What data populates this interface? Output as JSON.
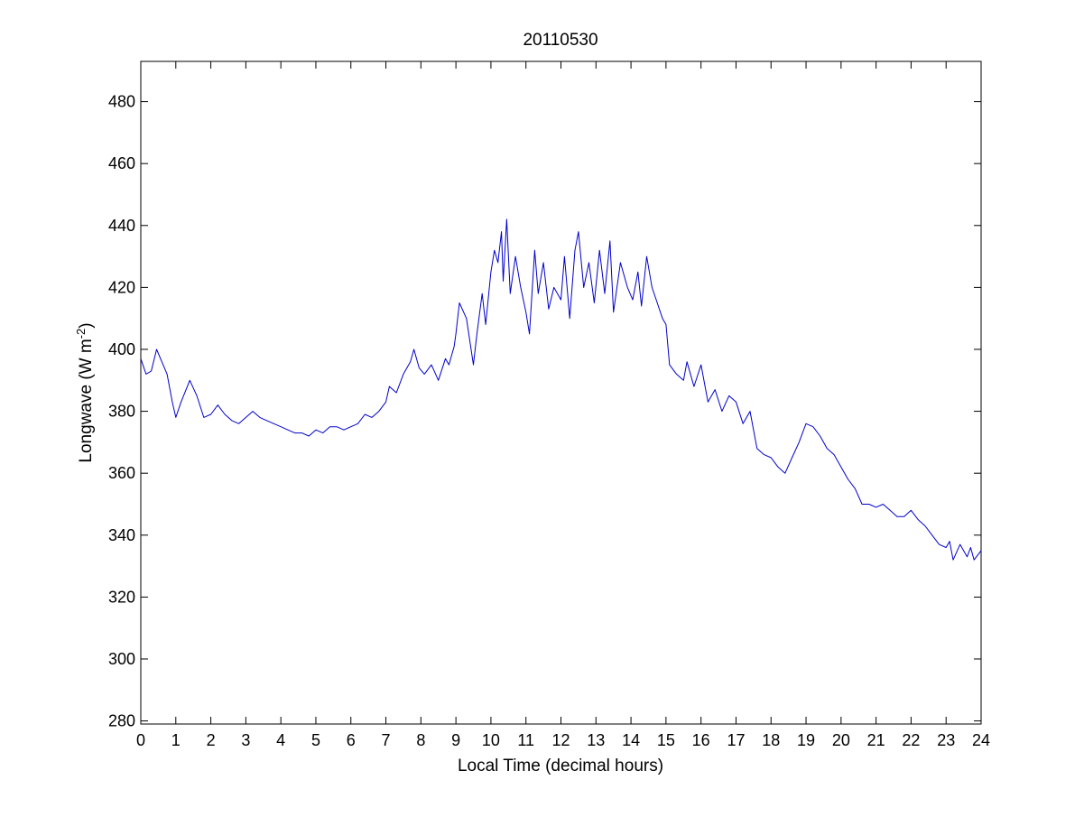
{
  "chart_data": {
    "type": "line",
    "title": "20110530",
    "xlabel": "Local Time (decimal hours)",
    "ylabel": {
      "prefix": "Longwave (W m",
      "superscript": "-2",
      "suffix": ")"
    },
    "xlim": [
      0,
      24
    ],
    "ylim": [
      279,
      493
    ],
    "xticks": [
      0,
      1,
      2,
      3,
      4,
      5,
      6,
      7,
      8,
      9,
      10,
      11,
      12,
      13,
      14,
      15,
      16,
      17,
      18,
      19,
      20,
      21,
      22,
      23,
      24
    ],
    "yticks": [
      280,
      300,
      320,
      340,
      360,
      380,
      400,
      420,
      440,
      460,
      480
    ],
    "grid": false,
    "line_color": "#0000cc",
    "series": [
      {
        "x": [
          0,
          0.15,
          0.3,
          0.45,
          0.6,
          0.75,
          0.9,
          1.0,
          1.15,
          1.4,
          1.6,
          1.8,
          2.0,
          2.2,
          2.4,
          2.6,
          2.8,
          3.0,
          3.2,
          3.4,
          3.6,
          3.8,
          4.0,
          4.2,
          4.4,
          4.6,
          4.8,
          5.0,
          5.2,
          5.4,
          5.6,
          5.8,
          6.0,
          6.2,
          6.4,
          6.6,
          6.8,
          7.0,
          7.1,
          7.3,
          7.5,
          7.7,
          7.8,
          7.95,
          8.1,
          8.3,
          8.5,
          8.7,
          8.8,
          8.95,
          9.0,
          9.1,
          9.3,
          9.5,
          9.6,
          9.75,
          9.85,
          10.0,
          10.1,
          10.2,
          10.3,
          10.35,
          10.45,
          10.55,
          10.7,
          10.85,
          11.0,
          11.1,
          11.25,
          11.35,
          11.5,
          11.65,
          11.8,
          12.0,
          12.1,
          12.25,
          12.4,
          12.5,
          12.65,
          12.8,
          12.95,
          13.1,
          13.25,
          13.4,
          13.5,
          13.7,
          13.9,
          14.05,
          14.2,
          14.3,
          14.45,
          14.6,
          14.75,
          14.9,
          15.0,
          15.1,
          15.3,
          15.5,
          15.6,
          15.8,
          16.0,
          16.2,
          16.4,
          16.6,
          16.8,
          17.0,
          17.2,
          17.4,
          17.6,
          17.8,
          18.0,
          18.2,
          18.4,
          18.6,
          18.8,
          19.0,
          19.2,
          19.4,
          19.6,
          19.8,
          20.0,
          20.2,
          20.4,
          20.6,
          20.8,
          21.0,
          21.2,
          21.4,
          21.6,
          21.8,
          22.0,
          22.2,
          22.4,
          22.6,
          22.8,
          23.0,
          23.1,
          23.2,
          23.4,
          23.6,
          23.7,
          23.8,
          24.0
        ],
        "y": [
          397,
          392,
          393,
          400,
          396,
          392,
          383,
          378,
          383,
          390,
          385,
          378,
          379,
          382,
          379,
          377,
          376,
          378,
          380,
          378,
          377,
          376,
          375,
          374,
          373,
          373,
          372,
          374,
          373,
          375,
          375,
          374,
          375,
          376,
          379,
          378,
          380,
          383,
          388,
          386,
          392,
          396,
          400,
          394,
          392,
          395,
          390,
          397,
          395,
          401,
          405,
          415,
          410,
          395,
          405,
          418,
          408,
          425,
          432,
          428,
          438,
          422,
          442,
          418,
          430,
          420,
          412,
          405,
          432,
          418,
          428,
          413,
          420,
          416,
          430,
          410,
          432,
          438,
          420,
          428,
          415,
          432,
          418,
          435,
          412,
          428,
          420,
          416,
          425,
          414,
          430,
          420,
          415,
          410,
          408,
          395,
          392,
          390,
          396,
          388,
          395,
          383,
          387,
          380,
          385,
          383,
          376,
          380,
          368,
          366,
          365,
          362,
          360,
          365,
          370,
          376,
          375,
          372,
          368,
          366,
          362,
          358,
          355,
          350,
          350,
          349,
          350,
          348,
          346,
          346,
          348,
          345,
          343,
          340,
          337,
          336,
          338,
          332,
          337,
          333,
          336,
          332,
          335
        ]
      }
    ]
  }
}
